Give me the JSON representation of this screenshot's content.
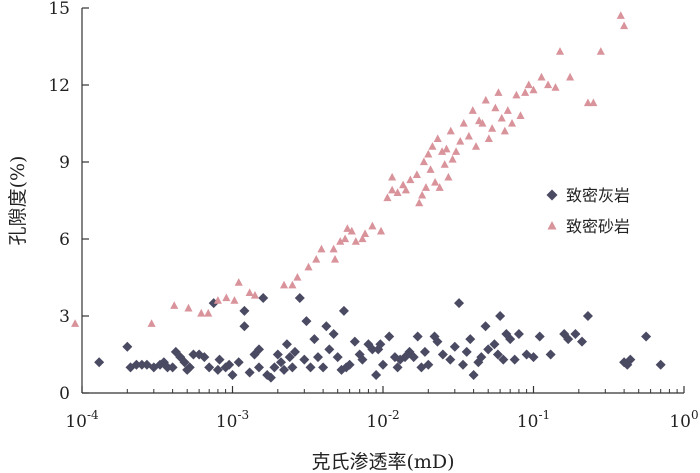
{
  "chart_data": {
    "type": "scatter",
    "xscale": "log",
    "xlim": [
      0.0001,
      1
    ],
    "ylim": [
      0,
      15
    ],
    "xlabel": "克氏渗透率(mD)",
    "ylabel": "孔隙度(%)",
    "grid": false,
    "legend": "right",
    "x_ticks": [
      {
        "value": 0.0001,
        "base": "10",
        "exp": "-4"
      },
      {
        "value": 0.001,
        "base": "10",
        "exp": "-3"
      },
      {
        "value": 0.01,
        "base": "10",
        "exp": "-2"
      },
      {
        "value": 0.1,
        "base": "10",
        "exp": "-1"
      },
      {
        "value": 1,
        "base": "10",
        "exp": "0"
      }
    ],
    "y_ticks": [
      {
        "value": 0,
        "label": "0"
      },
      {
        "value": 3,
        "label": "3"
      },
      {
        "value": 6,
        "label": "6"
      },
      {
        "value": 9,
        "label": "9"
      },
      {
        "value": 12,
        "label": "12"
      },
      {
        "value": 15,
        "label": "15"
      }
    ],
    "series": [
      {
        "name": "致密灰岩",
        "marker": "diamond",
        "color": "#4a4a63",
        "points": [
          [
            0.00013,
            1.2
          ],
          [
            0.0002,
            1.8
          ],
          [
            0.00021,
            1.0
          ],
          [
            0.00023,
            1.1
          ],
          [
            0.00025,
            1.1
          ],
          [
            0.00027,
            1.1
          ],
          [
            0.0003,
            1.0
          ],
          [
            0.00033,
            1.1
          ],
          [
            0.00035,
            1.2
          ],
          [
            0.00037,
            1.0
          ],
          [
            0.0004,
            1.0
          ],
          [
            0.00042,
            1.6
          ],
          [
            0.00045,
            1.4
          ],
          [
            0.00048,
            1.2
          ],
          [
            0.0005,
            0.9
          ],
          [
            0.00052,
            1.0
          ],
          [
            0.00055,
            1.5
          ],
          [
            0.0006,
            1.5
          ],
          [
            0.00065,
            1.4
          ],
          [
            0.0007,
            1.0
          ],
          [
            0.00075,
            3.5
          ],
          [
            0.0008,
            0.9
          ],
          [
            0.00082,
            1.3
          ],
          [
            0.0009,
            1.0
          ],
          [
            0.00095,
            1.1
          ],
          [
            0.001,
            0.7
          ],
          [
            0.0011,
            1.2
          ],
          [
            0.0012,
            2.6
          ],
          [
            0.0012,
            3.2
          ],
          [
            0.0013,
            0.8
          ],
          [
            0.0014,
            1.5
          ],
          [
            0.0015,
            1.7
          ],
          [
            0.0015,
            1.0
          ],
          [
            0.0016,
            3.7
          ],
          [
            0.0017,
            0.7
          ],
          [
            0.0018,
            0.6
          ],
          [
            0.0019,
            1.0
          ],
          [
            0.002,
            1.5
          ],
          [
            0.0021,
            1.2
          ],
          [
            0.0022,
            0.9
          ],
          [
            0.0023,
            1.9
          ],
          [
            0.0024,
            1.4
          ],
          [
            0.0025,
            1.0
          ],
          [
            0.0026,
            1.6
          ],
          [
            0.0028,
            3.7
          ],
          [
            0.003,
            1.3
          ],
          [
            0.0031,
            2.8
          ],
          [
            0.0033,
            1.0
          ],
          [
            0.0035,
            2.1
          ],
          [
            0.0037,
            1.4
          ],
          [
            0.004,
            1.0
          ],
          [
            0.0042,
            2.6
          ],
          [
            0.0044,
            1.7
          ],
          [
            0.0047,
            2.3
          ],
          [
            0.005,
            1.4
          ],
          [
            0.0053,
            0.9
          ],
          [
            0.0055,
            3.2
          ],
          [
            0.0057,
            1.0
          ],
          [
            0.006,
            1.1
          ],
          [
            0.0065,
            2.0
          ],
          [
            0.007,
            1.5
          ],
          [
            0.0073,
            1.3
          ],
          [
            0.008,
            1.9
          ],
          [
            0.0085,
            1.7
          ],
          [
            0.009,
            0.7
          ],
          [
            0.0093,
            1.7
          ],
          [
            0.0096,
            1.9
          ],
          [
            0.01,
            1.1
          ],
          [
            0.011,
            2.2
          ],
          [
            0.012,
            1.4
          ],
          [
            0.0125,
            1.0
          ],
          [
            0.013,
            1.3
          ],
          [
            0.014,
            1.4
          ],
          [
            0.015,
            1.6
          ],
          [
            0.016,
            1.4
          ],
          [
            0.017,
            2.2
          ],
          [
            0.018,
            1.0
          ],
          [
            0.019,
            1.6
          ],
          [
            0.02,
            1.1
          ],
          [
            0.022,
            2.2
          ],
          [
            0.023,
            2.0
          ],
          [
            0.025,
            1.5
          ],
          [
            0.028,
            1.3
          ],
          [
            0.03,
            1.8
          ],
          [
            0.032,
            3.5
          ],
          [
            0.034,
            1.1
          ],
          [
            0.036,
            1.6
          ],
          [
            0.038,
            2.1
          ],
          [
            0.04,
            0.7
          ],
          [
            0.043,
            1.2
          ],
          [
            0.045,
            1.4
          ],
          [
            0.048,
            2.6
          ],
          [
            0.05,
            1.7
          ],
          [
            0.055,
            1.9
          ],
          [
            0.058,
            1.5
          ],
          [
            0.06,
            3.0
          ],
          [
            0.063,
            1.3
          ],
          [
            0.066,
            2.3
          ],
          [
            0.07,
            2.1
          ],
          [
            0.075,
            1.3
          ],
          [
            0.08,
            2.3
          ],
          [
            0.09,
            1.5
          ],
          [
            0.1,
            1.4
          ],
          [
            0.11,
            2.2
          ],
          [
            0.13,
            1.5
          ],
          [
            0.16,
            2.3
          ],
          [
            0.17,
            2.1
          ],
          [
            0.19,
            2.3
          ],
          [
            0.21,
            2.0
          ],
          [
            0.23,
            3.0
          ],
          [
            0.4,
            1.2
          ],
          [
            0.42,
            1.1
          ],
          [
            0.44,
            1.3
          ],
          [
            0.56,
            2.2
          ],
          [
            0.7,
            1.1
          ]
        ]
      },
      {
        "name": "致密砂岩",
        "marker": "triangle",
        "color": "#d9939b",
        "points": [
          [
            9e-05,
            2.7
          ],
          [
            0.00029,
            2.7
          ],
          [
            0.00041,
            3.4
          ],
          [
            0.00051,
            3.3
          ],
          [
            0.00062,
            3.1
          ],
          [
            0.00069,
            3.1
          ],
          [
            0.0008,
            3.6
          ],
          [
            0.00091,
            3.7
          ],
          [
            0.00103,
            3.6
          ],
          [
            0.0011,
            4.3
          ],
          [
            0.0013,
            3.9
          ],
          [
            0.00141,
            3.8
          ],
          [
            0.0022,
            4.2
          ],
          [
            0.0025,
            4.2
          ],
          [
            0.0027,
            4.5
          ],
          [
            0.0032,
            4.9
          ],
          [
            0.0036,
            5.2
          ],
          [
            0.0039,
            5.6
          ],
          [
            0.0047,
            5.6
          ],
          [
            0.0048,
            5.2
          ],
          [
            0.0052,
            5.9
          ],
          [
            0.0056,
            6.0
          ],
          [
            0.0058,
            6.4
          ],
          [
            0.0062,
            6.3
          ],
          [
            0.0066,
            5.9
          ],
          [
            0.0073,
            6.0
          ],
          [
            0.0076,
            6.2
          ],
          [
            0.0085,
            6.5
          ],
          [
            0.0097,
            6.3
          ],
          [
            0.0107,
            7.6
          ],
          [
            0.0115,
            7.9
          ],
          [
            0.0115,
            8.4
          ],
          [
            0.0125,
            7.8
          ],
          [
            0.0136,
            8.1
          ],
          [
            0.0142,
            7.9
          ],
          [
            0.0152,
            8.3
          ],
          [
            0.0168,
            8.5
          ],
          [
            0.0174,
            7.4
          ],
          [
            0.0182,
            7.7
          ],
          [
            0.0187,
            9.0
          ],
          [
            0.0193,
            8.0
          ],
          [
            0.02,
            9.3
          ],
          [
            0.0207,
            8.7
          ],
          [
            0.0213,
            9.6
          ],
          [
            0.0222,
            8.2
          ],
          [
            0.0231,
            9.9
          ],
          [
            0.0238,
            8.0
          ],
          [
            0.0247,
            9.4
          ],
          [
            0.0257,
            8.9
          ],
          [
            0.0264,
            9.5
          ],
          [
            0.0272,
            8.4
          ],
          [
            0.0282,
            10.2
          ],
          [
            0.029,
            9.1
          ],
          [
            0.0306,
            9.4
          ],
          [
            0.0326,
            9.8
          ],
          [
            0.0344,
            10.5
          ],
          [
            0.0372,
            10.0
          ],
          [
            0.0395,
            11.0
          ],
          [
            0.0415,
            9.6
          ],
          [
            0.0435,
            10.6
          ],
          [
            0.0458,
            10.5
          ],
          [
            0.0482,
            11.4
          ],
          [
            0.0505,
            9.9
          ],
          [
            0.0531,
            10.3
          ],
          [
            0.0558,
            11.1
          ],
          [
            0.0585,
            11.7
          ],
          [
            0.0615,
            10.7
          ],
          [
            0.0645,
            10.2
          ],
          [
            0.0675,
            11.0
          ],
          [
            0.072,
            10.5
          ],
          [
            0.077,
            11.6
          ],
          [
            0.082,
            10.8
          ],
          [
            0.088,
            11.7
          ],
          [
            0.093,
            12.0
          ],
          [
            0.1,
            11.8
          ],
          [
            0.113,
            12.3
          ],
          [
            0.125,
            12.0
          ],
          [
            0.14,
            11.9
          ],
          [
            0.15,
            13.3
          ],
          [
            0.175,
            12.3
          ],
          [
            0.23,
            11.3
          ],
          [
            0.25,
            11.3
          ],
          [
            0.28,
            13.3
          ],
          [
            0.38,
            14.7
          ],
          [
            0.4,
            14.3
          ]
        ]
      }
    ]
  }
}
